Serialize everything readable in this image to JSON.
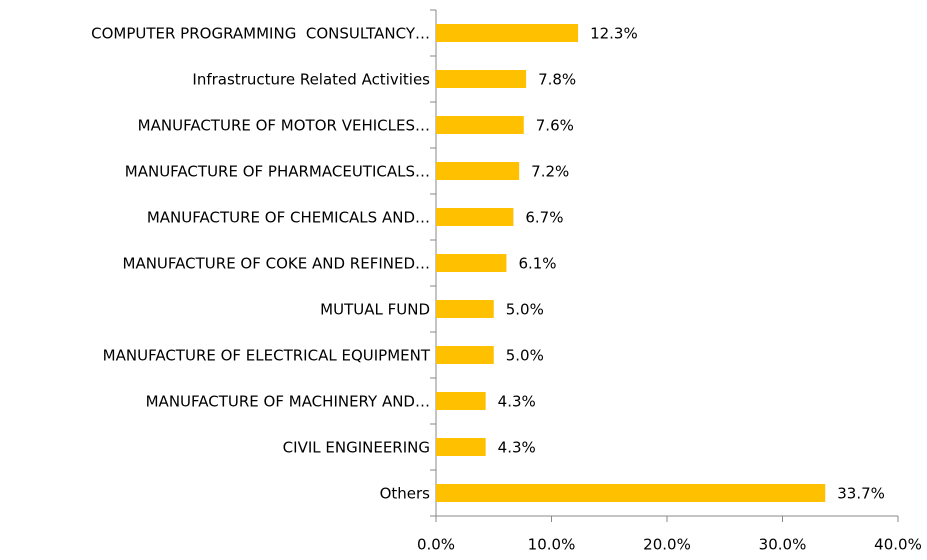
{
  "chart_data": {
    "type": "bar",
    "orientation": "horizontal",
    "categories": [
      "COMPUTER PROGRAMMING  CONSULTANCY…",
      "Infrastructure Related Activities",
      "MANUFACTURE OF MOTOR VEHICLES…",
      "MANUFACTURE OF PHARMACEUTICALS…",
      "MANUFACTURE OF CHEMICALS AND…",
      "MANUFACTURE OF COKE AND REFINED…",
      "MUTUAL FUND",
      "MANUFACTURE OF ELECTRICAL EQUIPMENT",
      "MANUFACTURE OF MACHINERY AND…",
      "CIVIL ENGINEERING",
      "Others"
    ],
    "values": [
      12.3,
      7.8,
      7.6,
      7.2,
      6.7,
      6.1,
      5.0,
      5.0,
      4.3,
      4.3,
      33.7
    ],
    "value_labels": [
      "12.3%",
      "7.8%",
      "7.6%",
      "7.2%",
      "6.7%",
      "6.1%",
      "5.0%",
      "5.0%",
      "4.3%",
      "4.3%",
      "33.7%"
    ],
    "color": "#ffc000",
    "xlim": [
      0,
      40
    ],
    "xticks": [
      {
        "value": 0,
        "label": "0.0%"
      },
      {
        "value": 10,
        "label": "10.0%"
      },
      {
        "value": 20,
        "label": "20.0%"
      },
      {
        "value": 30,
        "label": "30.0%"
      },
      {
        "value": 40,
        "label": "40.0%"
      }
    ],
    "grid": false
  }
}
